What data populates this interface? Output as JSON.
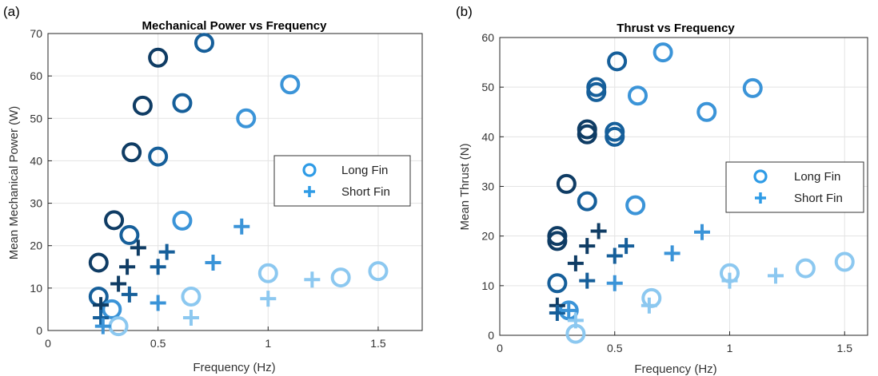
{
  "colors": {
    "c1": "#0f3c64",
    "c2": "#165f9a",
    "c3": "#3b94d8",
    "c4": "#8cc8f0",
    "legend": "#2e9be6"
  },
  "chart_data": [
    {
      "type": "scatter",
      "panel_label": "(a)",
      "title": "Mechanical Power vs Frequency",
      "xlabel": "Frequency (Hz)",
      "ylabel": "Mean Mechanical Power (W)",
      "xlim": [
        0,
        1.7
      ],
      "ylim": [
        0,
        70
      ],
      "xticks": [
        "0",
        "0.5",
        "1",
        "1.5"
      ],
      "xtick_values": [
        0,
        0.5,
        1,
        1.5
      ],
      "yticks": [
        "0",
        "10",
        "20",
        "30",
        "40",
        "50",
        "60",
        "70"
      ],
      "ytick_values": [
        0,
        10,
        20,
        30,
        40,
        50,
        60,
        70
      ],
      "grid": true,
      "legend": {
        "position": "center-right",
        "entries": [
          "Long Fin",
          "Short Fin"
        ]
      },
      "series": [
        {
          "name": "Long Fin",
          "marker": "circle",
          "points": [
            {
              "x": 0.38,
              "y": 42,
              "c": "c1"
            },
            {
              "x": 0.43,
              "y": 53,
              "c": "c1"
            },
            {
              "x": 0.5,
              "y": 64.3,
              "c": "c1"
            },
            {
              "x": 0.3,
              "y": 26,
              "c": "c1"
            },
            {
              "x": 0.23,
              "y": 16,
              "c": "c1"
            },
            {
              "x": 0.71,
              "y": 67.8,
              "c": "c2"
            },
            {
              "x": 0.61,
              "y": 53.6,
              "c": "c2"
            },
            {
              "x": 0.5,
              "y": 41,
              "c": "c2"
            },
            {
              "x": 0.37,
              "y": 22.5,
              "c": "c2"
            },
            {
              "x": 0.23,
              "y": 8,
              "c": "c2"
            },
            {
              "x": 0.9,
              "y": 50,
              "c": "c3"
            },
            {
              "x": 1.1,
              "y": 58,
              "c": "c3"
            },
            {
              "x": 0.61,
              "y": 25.9,
              "c": "c3"
            },
            {
              "x": 0.29,
              "y": 5,
              "c": "c3"
            },
            {
              "x": 1.0,
              "y": 13.5,
              "c": "c4"
            },
            {
              "x": 1.33,
              "y": 12.5,
              "c": "c4"
            },
            {
              "x": 1.5,
              "y": 14,
              "c": "c4"
            },
            {
              "x": 0.65,
              "y": 8,
              "c": "c4"
            },
            {
              "x": 0.32,
              "y": 1,
              "c": "c4"
            }
          ]
        },
        {
          "name": "Short Fin",
          "marker": "plus",
          "points": [
            {
              "x": 0.24,
              "y": 6,
              "c": "c1"
            },
            {
              "x": 0.32,
              "y": 11,
              "c": "c1"
            },
            {
              "x": 0.36,
              "y": 15,
              "c": "c1"
            },
            {
              "x": 0.41,
              "y": 19.5,
              "c": "c1"
            },
            {
              "x": 0.24,
              "y": 3,
              "c": "c2"
            },
            {
              "x": 0.37,
              "y": 8.5,
              "c": "c2"
            },
            {
              "x": 0.5,
              "y": 15,
              "c": "c2"
            },
            {
              "x": 0.54,
              "y": 18.5,
              "c": "c2"
            },
            {
              "x": 0.5,
              "y": 6.5,
              "c": "c3"
            },
            {
              "x": 0.75,
              "y": 16,
              "c": "c3"
            },
            {
              "x": 0.88,
              "y": 24.5,
              "c": "c3"
            },
            {
              "x": 0.25,
              "y": 1,
              "c": "c3"
            },
            {
              "x": 0.65,
              "y": 3,
              "c": "c4"
            },
            {
              "x": 1.0,
              "y": 7.5,
              "c": "c4"
            },
            {
              "x": 1.2,
              "y": 12,
              "c": "c4"
            }
          ]
        }
      ]
    },
    {
      "type": "scatter",
      "panel_label": "(b)",
      "title": "Thrust vs Frequency",
      "xlabel": "Frequency (Hz)",
      "ylabel": "Mean Thrust (N)",
      "xlim": [
        0,
        1.6
      ],
      "ylim": [
        0,
        60
      ],
      "xticks": [
        "0",
        "0.5",
        "1",
        "1.5"
      ],
      "xtick_values": [
        0,
        0.5,
        1,
        1.5
      ],
      "yticks": [
        "0",
        "10",
        "20",
        "30",
        "40",
        "50",
        "60"
      ],
      "ytick_values": [
        0,
        10,
        20,
        30,
        40,
        50,
        60
      ],
      "grid": true,
      "legend": {
        "position": "center-right",
        "entries": [
          "Long Fin",
          "Short Fin"
        ]
      },
      "series": [
        {
          "name": "Long Fin",
          "marker": "circle",
          "points": [
            {
              "x": 0.25,
              "y": 19,
              "c": "c1"
            },
            {
              "x": 0.25,
              "y": 20,
              "c": "c1"
            },
            {
              "x": 0.29,
              "y": 30.5,
              "c": "c1"
            },
            {
              "x": 0.38,
              "y": 40.5,
              "c": "c1"
            },
            {
              "x": 0.38,
              "y": 41.5,
              "c": "c1"
            },
            {
              "x": 0.25,
              "y": 10.5,
              "c": "c2"
            },
            {
              "x": 0.38,
              "y": 27,
              "c": "c2"
            },
            {
              "x": 0.42,
              "y": 49,
              "c": "c2"
            },
            {
              "x": 0.42,
              "y": 50,
              "c": "c2"
            },
            {
              "x": 0.5,
              "y": 40,
              "c": "c2"
            },
            {
              "x": 0.5,
              "y": 41,
              "c": "c2"
            },
            {
              "x": 0.51,
              "y": 55.2,
              "c": "c2"
            },
            {
              "x": 0.71,
              "y": 57,
              "c": "c3"
            },
            {
              "x": 0.6,
              "y": 48.3,
              "c": "c3"
            },
            {
              "x": 0.59,
              "y": 26.2,
              "c": "c3"
            },
            {
              "x": 0.9,
              "y": 45,
              "c": "c3"
            },
            {
              "x": 1.1,
              "y": 49.8,
              "c": "c3"
            },
            {
              "x": 0.3,
              "y": 5,
              "c": "c3"
            },
            {
              "x": 0.33,
              "y": 0.3,
              "c": "c4"
            },
            {
              "x": 0.66,
              "y": 7.5,
              "c": "c4"
            },
            {
              "x": 1.0,
              "y": 12.5,
              "c": "c4"
            },
            {
              "x": 1.33,
              "y": 13.5,
              "c": "c4"
            },
            {
              "x": 1.5,
              "y": 14.8,
              "c": "c4"
            }
          ]
        },
        {
          "name": "Short Fin",
          "marker": "plus",
          "points": [
            {
              "x": 0.25,
              "y": 6,
              "c": "c1"
            },
            {
              "x": 0.33,
              "y": 14.5,
              "c": "c1"
            },
            {
              "x": 0.38,
              "y": 18,
              "c": "c1"
            },
            {
              "x": 0.43,
              "y": 21,
              "c": "c1"
            },
            {
              "x": 0.25,
              "y": 4.5,
              "c": "c2"
            },
            {
              "x": 0.38,
              "y": 11,
              "c": "c2"
            },
            {
              "x": 0.5,
              "y": 16,
              "c": "c2"
            },
            {
              "x": 0.55,
              "y": 18,
              "c": "c2"
            },
            {
              "x": 0.5,
              "y": 10.5,
              "c": "c3"
            },
            {
              "x": 0.75,
              "y": 16.5,
              "c": "c3"
            },
            {
              "x": 0.88,
              "y": 20.8,
              "c": "c3"
            },
            {
              "x": 0.3,
              "y": 5,
              "c": "c3"
            },
            {
              "x": 0.33,
              "y": 3,
              "c": "c4"
            },
            {
              "x": 0.65,
              "y": 6,
              "c": "c4"
            },
            {
              "x": 1.0,
              "y": 11,
              "c": "c4"
            },
            {
              "x": 1.2,
              "y": 12,
              "c": "c4"
            }
          ]
        }
      ]
    }
  ]
}
